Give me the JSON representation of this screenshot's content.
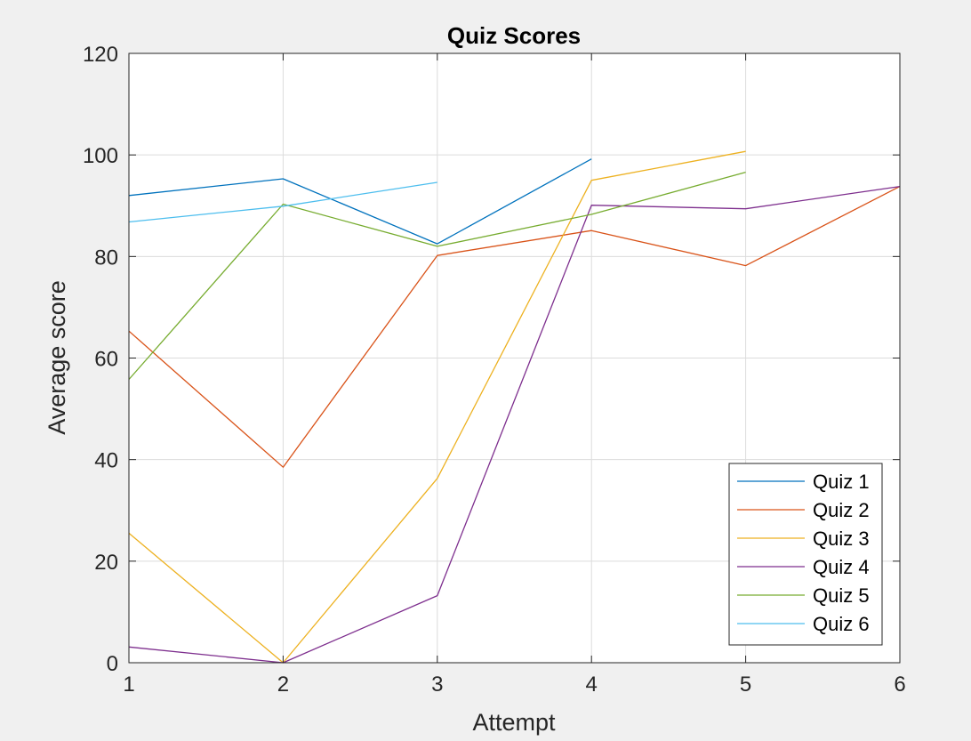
{
  "chart_data": {
    "type": "line",
    "title": "Quiz Scores",
    "xlabel": "Attempt",
    "ylabel": "Average score",
    "xlim": [
      1,
      6
    ],
    "ylim": [
      0,
      120
    ],
    "xticks": [
      1,
      2,
      3,
      4,
      5,
      6
    ],
    "yticks": [
      0,
      20,
      40,
      60,
      80,
      100,
      120
    ],
    "grid": true,
    "legend_position": "bottom-right",
    "series": [
      {
        "name": "Quiz 1",
        "color": "#0072BD",
        "x": [
          1,
          2,
          3,
          4
        ],
        "values": [
          92,
          95.3,
          82.5,
          99.2
        ]
      },
      {
        "name": "Quiz 2",
        "color": "#D95319",
        "x": [
          1,
          2,
          3,
          4,
          5,
          6
        ],
        "values": [
          65.3,
          38.5,
          80.2,
          85.1,
          78.2,
          93.8
        ]
      },
      {
        "name": "Quiz 3",
        "color": "#EDB120",
        "x": [
          1,
          2,
          3,
          4,
          5
        ],
        "values": [
          25.5,
          0,
          36.3,
          95,
          100.7
        ]
      },
      {
        "name": "Quiz 4",
        "color": "#7E2F8E",
        "x": [
          1,
          2,
          3,
          4,
          5,
          6
        ],
        "values": [
          3.1,
          0,
          13.2,
          90.1,
          89.4,
          93.8
        ]
      },
      {
        "name": "Quiz 5",
        "color": "#77AC30",
        "x": [
          1,
          2,
          3,
          4,
          5
        ],
        "values": [
          55.8,
          90.3,
          82,
          88.3,
          96.6
        ]
      },
      {
        "name": "Quiz 6",
        "color": "#4DBEEE",
        "x": [
          1,
          2,
          3
        ],
        "values": [
          86.8,
          89.9,
          94.6
        ]
      }
    ]
  }
}
